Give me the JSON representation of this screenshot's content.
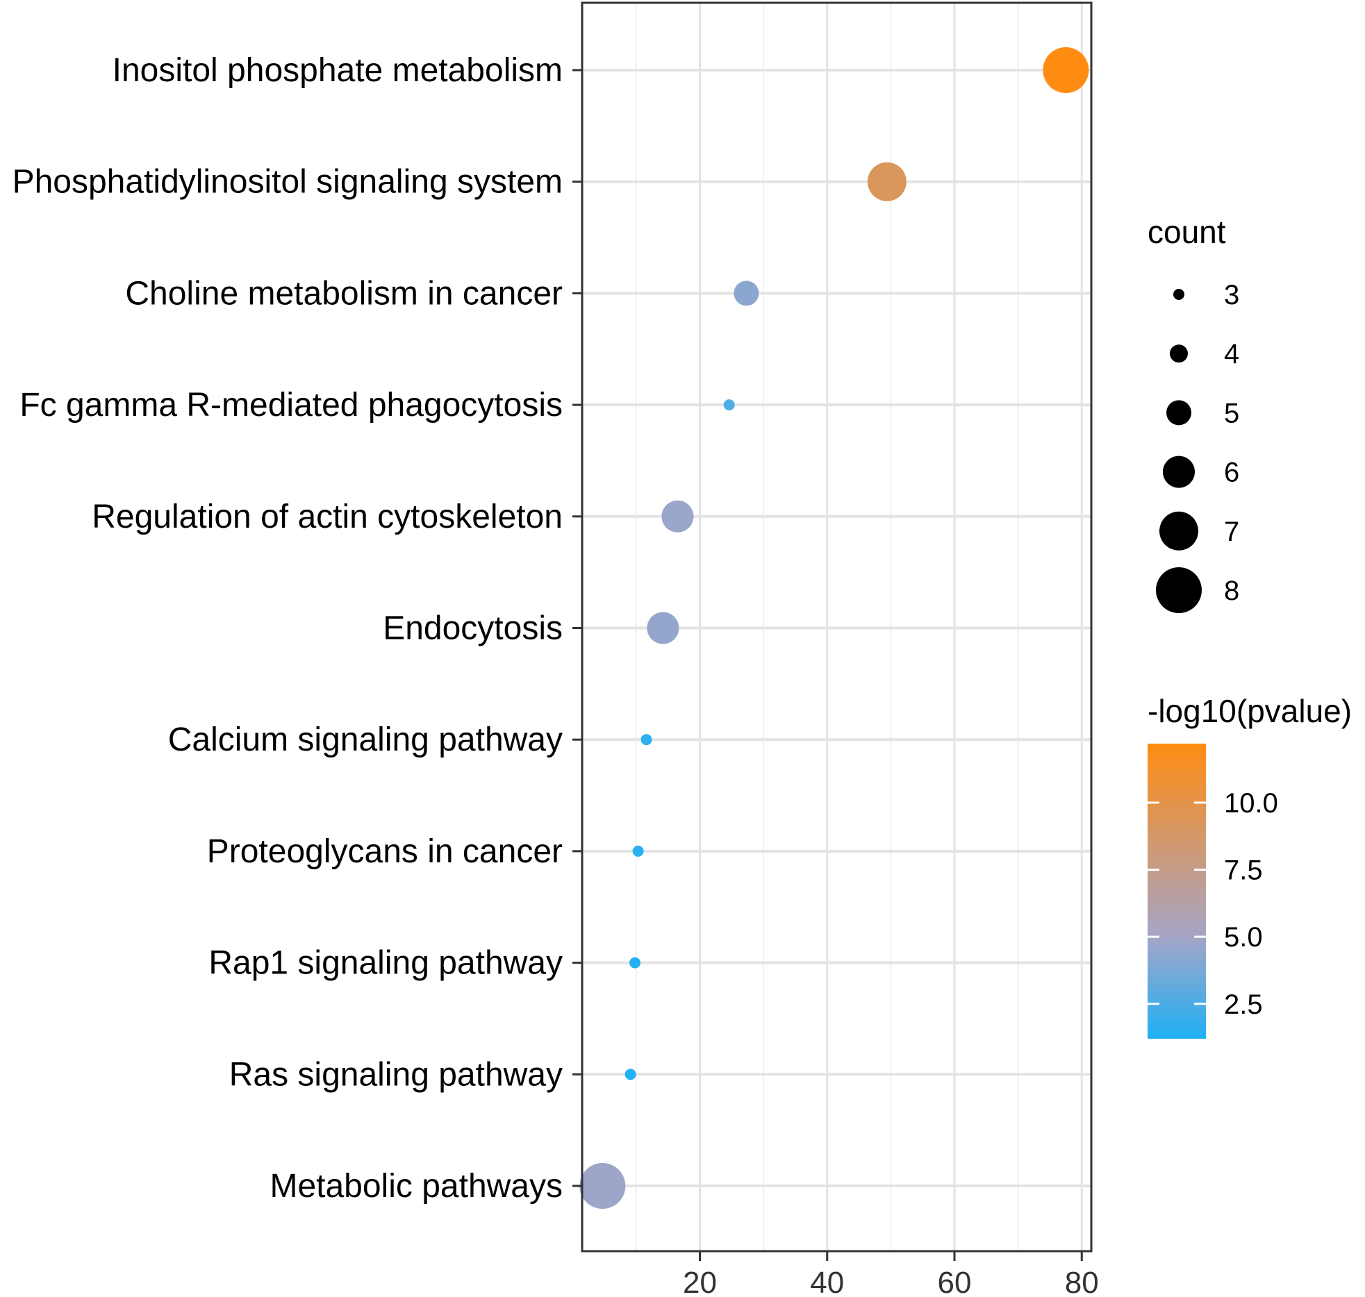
{
  "chart_data": {
    "type": "scatter",
    "title": "",
    "xlabel": "",
    "ylabel": "",
    "xlim": [
      1.5,
      81.5
    ],
    "x_ticks": [
      20,
      40,
      60,
      80
    ],
    "grid": true,
    "categories": [
      "Inositol phosphate metabolism",
      "Phosphatidylinositol signaling system",
      "Choline metabolism in cancer",
      "Fc gamma R-mediated phagocytosis",
      "Regulation of actin cytoskeleton",
      "Endocytosis",
      "Calcium signaling pathway",
      "Proteoglycans in cancer",
      "Rap1 signaling pathway",
      "Ras signaling pathway",
      "Metabolic pathways"
    ],
    "x": [
      77.5,
      49.4,
      27.3,
      24.6,
      16.5,
      14.2,
      11.6,
      10.3,
      9.8,
      9.1,
      4.7
    ],
    "count": [
      8,
      7,
      5,
      3,
      6,
      6,
      3,
      3,
      3,
      3,
      8
    ],
    "neg_log10_pvalue": [
      12.2,
      9.3,
      4.3,
      2.6,
      4.7,
      4.5,
      1.6,
      1.5,
      1.4,
      1.3,
      4.8
    ],
    "legend_size": {
      "title": "count",
      "values": [
        3,
        4,
        5,
        6,
        7,
        8
      ],
      "labels": [
        "3",
        "4",
        "5",
        "6",
        "7",
        "8"
      ]
    },
    "legend_color": {
      "title": "-log10(pvalue)",
      "range": [
        1.2,
        12.2
      ],
      "ticks": [
        2.5,
        5.0,
        7.5,
        10.0
      ],
      "tick_labels": [
        "2.5",
        "5.0",
        "7.5",
        "10.0"
      ],
      "low_color": "#1fb0f5",
      "mid_color": "#a6a5c6",
      "high_color": "#ff8c12"
    }
  }
}
